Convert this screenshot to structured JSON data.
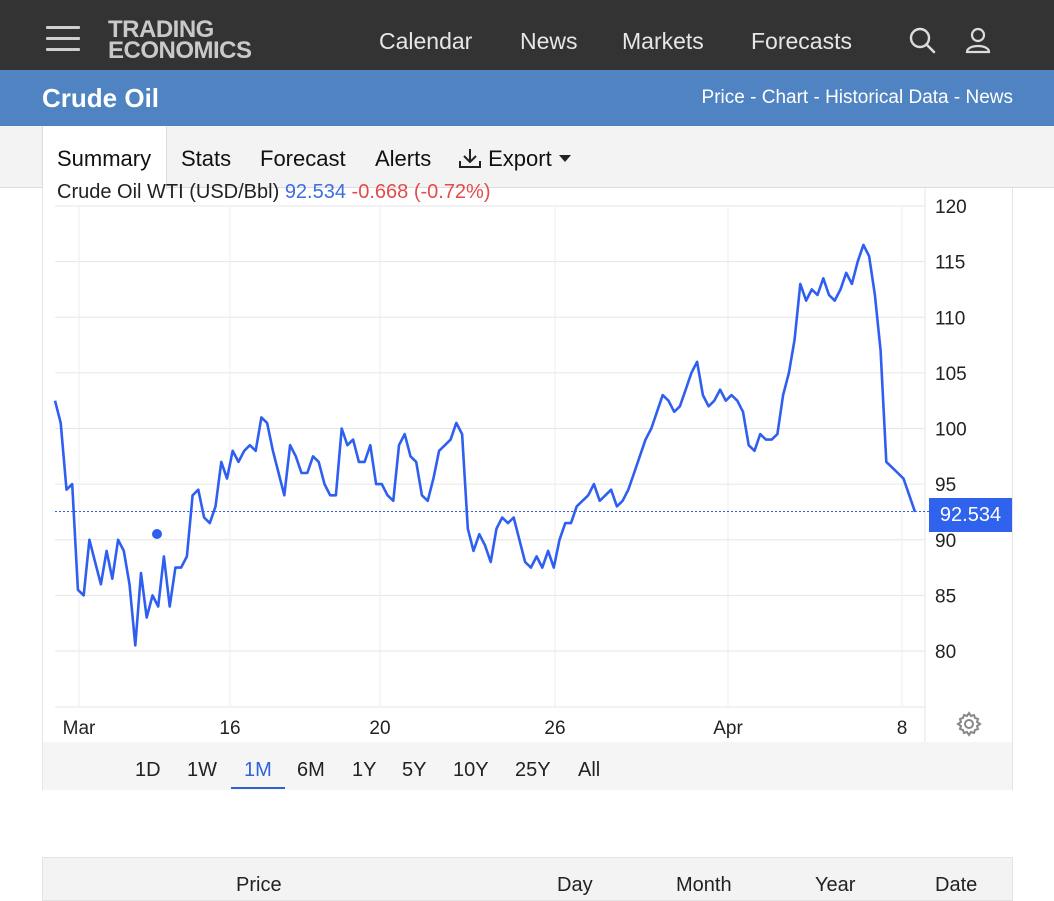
{
  "header": {
    "logo_line1": "TRADING",
    "logo_line2": "ECONOMICS",
    "nav": [
      "Calendar",
      "News",
      "Markets",
      "Forecasts"
    ]
  },
  "title_bar": {
    "title": "Crude Oil",
    "breadcrumb": "Price - Chart - Historical Data - News"
  },
  "tabs": [
    "Summary",
    "Stats",
    "Forecast",
    "Alerts",
    "Export"
  ],
  "legend": {
    "series": "Crude Oil WTI (USD/Bbl)",
    "value": "92.534",
    "change": "-0.668 (-0.72%)"
  },
  "price_tag": "92.534",
  "ranges": [
    "1D",
    "1W",
    "1M",
    "6M",
    "1Y",
    "5Y",
    "10Y",
    "25Y",
    "All"
  ],
  "active_range": "1M",
  "table_headers": [
    "Price",
    "Day",
    "Month",
    "Year",
    "Date"
  ],
  "colors": {
    "line": "#2f5ff0",
    "brand_blue": "#4f83c2",
    "topbar": "#333333",
    "negative": "#e34b4b"
  },
  "chart_data": {
    "type": "line",
    "y_ticks": [
      80,
      85,
      90,
      95,
      100,
      105,
      110,
      115,
      120
    ],
    "ylim": [
      76,
      121
    ],
    "x_ticks": [
      "Mar",
      "16",
      "20",
      "26",
      "Apr",
      "8"
    ],
    "current_value": 92.534,
    "series": [
      {
        "values": [
          102.5,
          100.5,
          94.5,
          95,
          85.5,
          85,
          90,
          88,
          86,
          89,
          86.5,
          90,
          89,
          86,
          80.5,
          87,
          83,
          85,
          84,
          88.5,
          84,
          87.5,
          87.5,
          88.5,
          94,
          94.5,
          92,
          91.5,
          93,
          97,
          95.5,
          98,
          97,
          98,
          98.5,
          98,
          101,
          100.5,
          98,
          96,
          94,
          98.5,
          97.5,
          96,
          96,
          97.5,
          97,
          95,
          94,
          94,
          100,
          98.5,
          99,
          97,
          97,
          98.5,
          95,
          95,
          94,
          93.5,
          98.5,
          99.5,
          97.5,
          97,
          94,
          93.5,
          95.5,
          98,
          98.5,
          99,
          100.5,
          99.5,
          91,
          89,
          90.5,
          89.5,
          88,
          91,
          92,
          91.5,
          92,
          90,
          88,
          87.5,
          88.5,
          87.5,
          89,
          87.5,
          90,
          91.5,
          91.5,
          93,
          93.5,
          94,
          95,
          93.5,
          94,
          94.5,
          93,
          93.5,
          94.5,
          96,
          97.5,
          99,
          100,
          101.5,
          103,
          102.5,
          101.5,
          102,
          103.5,
          105,
          106,
          103,
          102,
          102.5,
          103.5,
          102.5,
          103,
          102.5,
          101.5,
          98.5,
          98,
          99.5,
          99,
          99,
          99.5,
          103,
          105,
          108,
          113,
          111.5,
          112.5,
          112,
          113.5,
          112,
          111.5,
          112.5,
          114,
          113,
          115,
          116.5,
          115.5,
          112,
          107,
          97,
          96.5,
          96,
          95.5,
          94,
          92.5
        ]
      }
    ]
  }
}
